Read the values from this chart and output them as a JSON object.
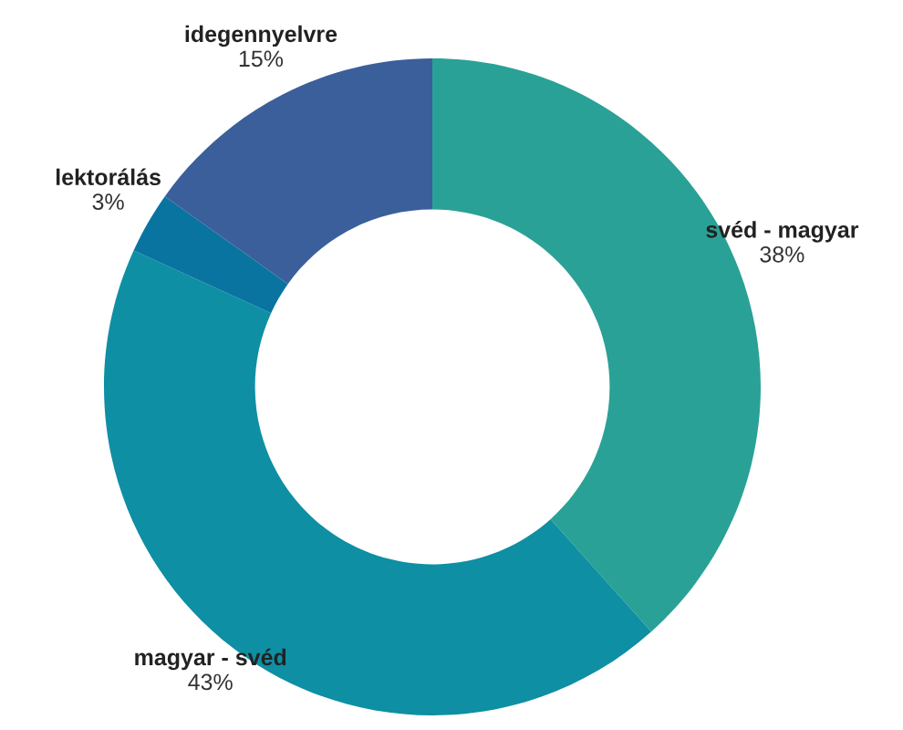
{
  "chart_data": {
    "type": "donut",
    "categories": [
      "svéd - magyar",
      "magyar - svéd",
      "lektorálás",
      "idegennyelvre"
    ],
    "values": [
      38,
      43,
      3,
      15
    ],
    "colors": [
      "#2aa196",
      "#0e8fa3",
      "#0a74a1",
      "#3a5f9b"
    ],
    "value_labels": [
      "38%",
      "43%",
      "3%",
      "15%"
    ]
  }
}
